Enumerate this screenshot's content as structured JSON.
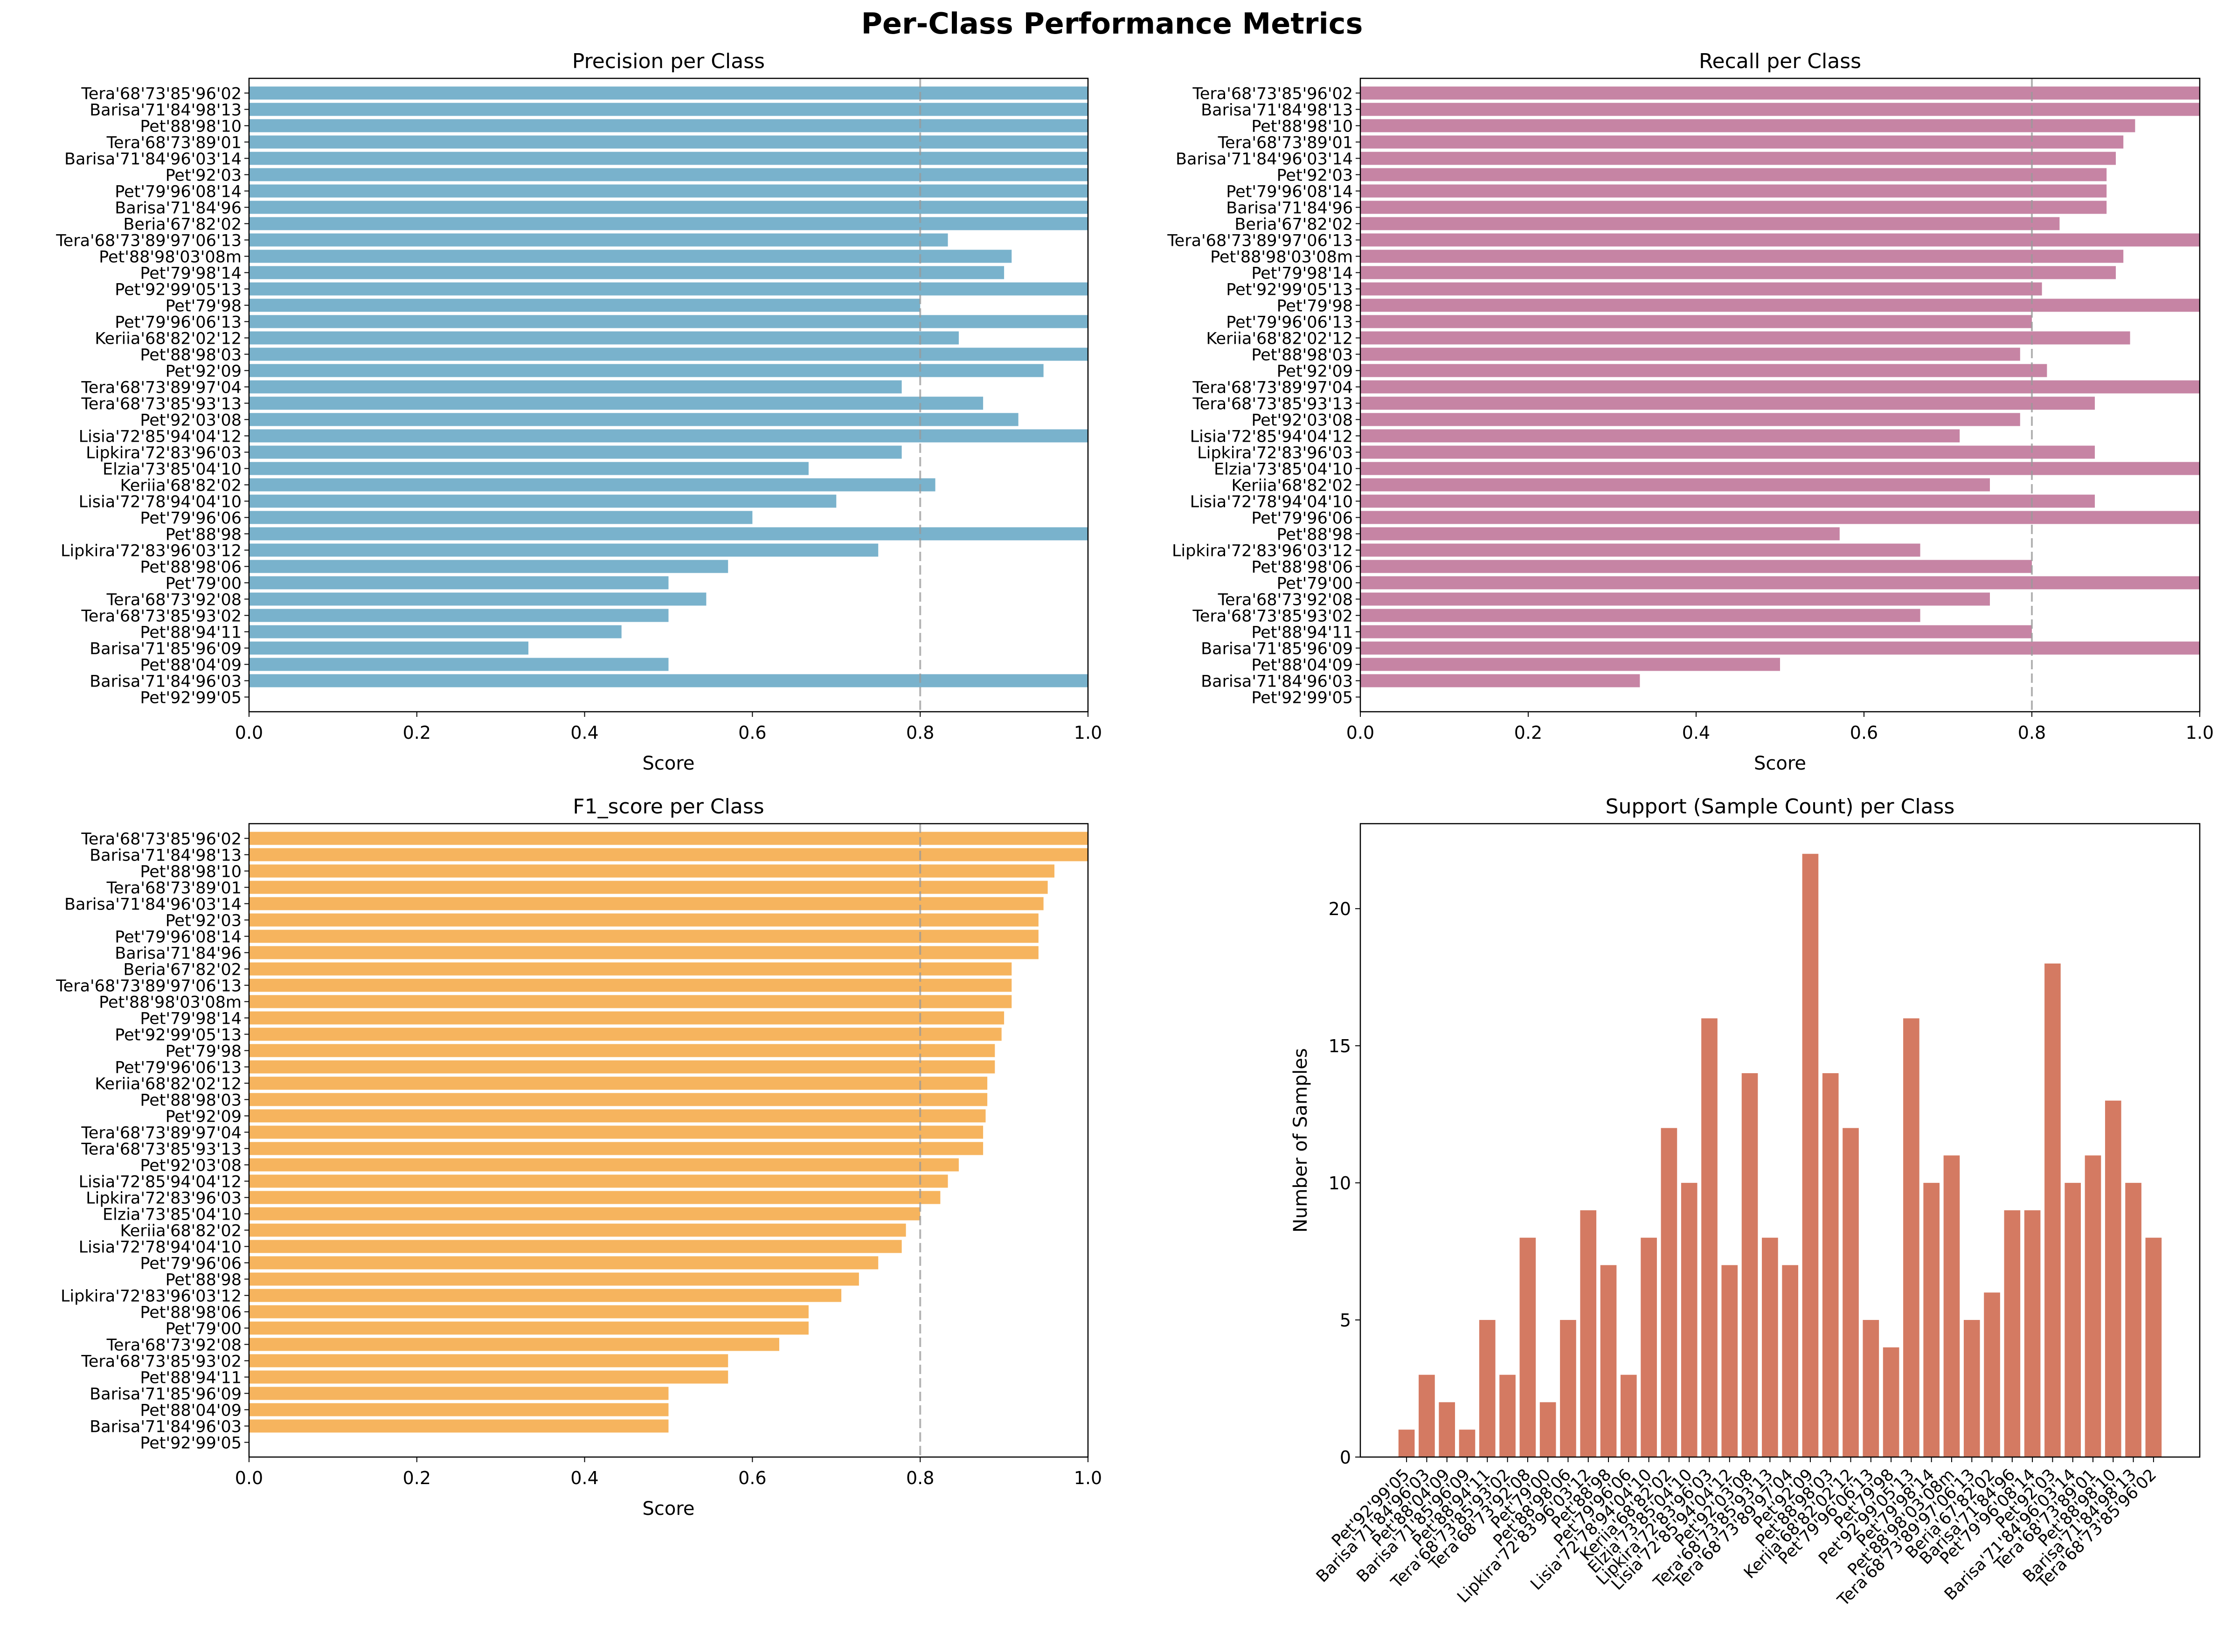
{
  "figure": {
    "title": "Per-Class Performance Metrics"
  },
  "chart_data": [
    {
      "type": "bar",
      "orientation": "horizontal",
      "title": "Precision per Class",
      "xlabel": "Score",
      "ylabel": "",
      "xlim": [
        0,
        1.0
      ],
      "xticks": [
        "0.0",
        "0.2",
        "0.4",
        "0.6",
        "0.8",
        "1.0"
      ],
      "threshold": 0.8,
      "color": "#6aaac6",
      "categories": [
        "Tera'68'73'85'96'02",
        "Barisa'71'84'98'13",
        "Pet'88'98'10",
        "Tera'68'73'89'01",
        "Barisa'71'84'96'03'14",
        "Pet'92'03",
        "Pet'79'96'08'14",
        "Barisa'71'84'96",
        "Beria'67'82'02",
        "Tera'68'73'89'97'06'13",
        "Pet'88'98'03'08m",
        "Pet'79'98'14",
        "Pet'92'99'05'13",
        "Pet'79'98",
        "Pet'79'96'06'13",
        "Keriia'68'82'02'12",
        "Pet'88'98'03",
        "Pet'92'09",
        "Tera'68'73'89'97'04",
        "Tera'68'73'85'93'13",
        "Pet'92'03'08",
        "Lisia'72'85'94'04'12",
        "Lipkira'72'83'96'03",
        "Elzia'73'85'04'10",
        "Keriia'68'82'02",
        "Lisia'72'78'94'04'10",
        "Pet'79'96'06",
        "Pet'88'98",
        "Lipkira'72'83'96'03'12",
        "Pet'88'98'06",
        "Pet'79'00",
        "Tera'68'73'92'08",
        "Tera'68'73'85'93'02",
        "Pet'88'94'11",
        "Barisa'71'85'96'09",
        "Pet'88'04'09",
        "Barisa'71'84'96'03",
        "Pet'92'99'05"
      ],
      "values": [
        1.0,
        1.0,
        1.0,
        1.0,
        1.0,
        1.0,
        1.0,
        1.0,
        1.0,
        0.833,
        0.909,
        0.9,
        1.0,
        0.8,
        1.0,
        0.846,
        1.0,
        0.947,
        0.778,
        0.875,
        0.917,
        1.0,
        0.778,
        0.667,
        0.818,
        0.7,
        0.6,
        1.0,
        0.75,
        0.571,
        0.5,
        0.545,
        0.5,
        0.444,
        0.333,
        0.5,
        1.0,
        0.0
      ]
    },
    {
      "type": "bar",
      "orientation": "horizontal",
      "title": "Recall per Class",
      "xlabel": "Score",
      "ylabel": "",
      "xlim": [
        0,
        1.0
      ],
      "xticks": [
        "0.0",
        "0.2",
        "0.4",
        "0.6",
        "0.8",
        "1.0"
      ],
      "threshold": 0.8,
      "color": "#c0779a",
      "categories": [
        "Tera'68'73'85'96'02",
        "Barisa'71'84'98'13",
        "Pet'88'98'10",
        "Tera'68'73'89'01",
        "Barisa'71'84'96'03'14",
        "Pet'92'03",
        "Pet'79'96'08'14",
        "Barisa'71'84'96",
        "Beria'67'82'02",
        "Tera'68'73'89'97'06'13",
        "Pet'88'98'03'08m",
        "Pet'79'98'14",
        "Pet'92'99'05'13",
        "Pet'79'98",
        "Pet'79'96'06'13",
        "Keriia'68'82'02'12",
        "Pet'88'98'03",
        "Pet'92'09",
        "Tera'68'73'89'97'04",
        "Tera'68'73'85'93'13",
        "Pet'92'03'08",
        "Lisia'72'85'94'04'12",
        "Lipkira'72'83'96'03",
        "Elzia'73'85'04'10",
        "Keriia'68'82'02",
        "Lisia'72'78'94'04'10",
        "Pet'79'96'06",
        "Pet'88'98",
        "Lipkira'72'83'96'03'12",
        "Pet'88'98'06",
        "Pet'79'00",
        "Tera'68'73'92'08",
        "Tera'68'73'85'93'02",
        "Pet'88'94'11",
        "Barisa'71'85'96'09",
        "Pet'88'04'09",
        "Barisa'71'84'96'03",
        "Pet'92'99'05"
      ],
      "values": [
        1.0,
        1.0,
        0.923,
        0.909,
        0.9,
        0.889,
        0.889,
        0.889,
        0.833,
        1.0,
        0.909,
        0.9,
        0.812,
        1.0,
        0.8,
        0.917,
        0.786,
        0.818,
        1.0,
        0.875,
        0.786,
        0.714,
        0.875,
        1.0,
        0.75,
        0.875,
        1.0,
        0.571,
        0.667,
        0.8,
        1.0,
        0.75,
        0.667,
        0.8,
        1.0,
        0.5,
        0.333,
        0.0
      ]
    },
    {
      "type": "bar",
      "orientation": "horizontal",
      "title": "F1_score per Class",
      "xlabel": "Score",
      "ylabel": "",
      "xlim": [
        0,
        1.0
      ],
      "xticks": [
        "0.0",
        "0.2",
        "0.4",
        "0.6",
        "0.8",
        "1.0"
      ],
      "threshold": 0.8,
      "color": "#f5ac4c",
      "categories": [
        "Tera'68'73'85'96'02",
        "Barisa'71'84'98'13",
        "Pet'88'98'10",
        "Tera'68'73'89'01",
        "Barisa'71'84'96'03'14",
        "Pet'92'03",
        "Pet'79'96'08'14",
        "Barisa'71'84'96",
        "Beria'67'82'02",
        "Tera'68'73'89'97'06'13",
        "Pet'88'98'03'08m",
        "Pet'79'98'14",
        "Pet'92'99'05'13",
        "Pet'79'98",
        "Pet'79'96'06'13",
        "Keriia'68'82'02'12",
        "Pet'88'98'03",
        "Pet'92'09",
        "Tera'68'73'89'97'04",
        "Tera'68'73'85'93'13",
        "Pet'92'03'08",
        "Lisia'72'85'94'04'12",
        "Lipkira'72'83'96'03",
        "Elzia'73'85'04'10",
        "Keriia'68'82'02",
        "Lisia'72'78'94'04'10",
        "Pet'79'96'06",
        "Pet'88'98",
        "Lipkira'72'83'96'03'12",
        "Pet'88'98'06",
        "Pet'79'00",
        "Tera'68'73'92'08",
        "Tera'68'73'85'93'02",
        "Pet'88'94'11",
        "Barisa'71'85'96'09",
        "Pet'88'04'09",
        "Barisa'71'84'96'03",
        "Pet'92'99'05"
      ],
      "values": [
        1.0,
        1.0,
        0.96,
        0.952,
        0.947,
        0.941,
        0.941,
        0.941,
        0.909,
        0.909,
        0.909,
        0.9,
        0.897,
        0.889,
        0.889,
        0.88,
        0.88,
        0.878,
        0.875,
        0.875,
        0.846,
        0.833,
        0.824,
        0.8,
        0.783,
        0.778,
        0.75,
        0.727,
        0.706,
        0.667,
        0.667,
        0.632,
        0.571,
        0.571,
        0.5,
        0.5,
        0.5,
        0.0
      ]
    },
    {
      "type": "bar",
      "orientation": "vertical",
      "title": "Support (Sample Count) per Class",
      "xlabel": "",
      "ylabel": "Number of Samples",
      "ylim": [
        0,
        23.1
      ],
      "yticks": [
        0,
        5,
        10,
        15,
        20
      ],
      "color": "#d2735a",
      "categories": [
        "Pet'92'99'05",
        "Barisa'71'84'96'03",
        "Pet'88'04'09",
        "Barisa'71'85'96'09",
        "Pet'88'94'11",
        "Tera'68'73'85'93'02",
        "Tera'68'73'92'08",
        "Pet'79'00",
        "Pet'88'98'06",
        "Lipkira'72'83'96'03'12",
        "Pet'88'98",
        "Pet'79'96'06",
        "Lisia'72'78'94'04'10",
        "Keriia'68'82'02",
        "Elzia'73'85'04'10",
        "Lipkira'72'83'96'03",
        "Lisia'72'85'94'04'12",
        "Pet'92'03'08",
        "Tera'68'73'85'93'13",
        "Tera'68'73'89'97'04",
        "Pet'92'09",
        "Pet'88'98'03",
        "Keriia'68'82'02'12",
        "Pet'79'96'06'13",
        "Pet'79'98",
        "Pet'92'99'05'13",
        "Pet'79'98'14",
        "Pet'88'98'03'08m",
        "Tera'68'73'89'97'06'13",
        "Beria'67'82'02",
        "Barisa'71'84'96",
        "Pet'79'96'08'14",
        "Pet'92'03",
        "Barisa'71'84'96'03'14",
        "Tera'68'73'89'01",
        "Pet'88'98'10",
        "Barisa'71'84'98'13",
        "Tera'68'73'85'96'02"
      ],
      "values": [
        1,
        3,
        2,
        1,
        5,
        3,
        8,
        2,
        5,
        9,
        7,
        3,
        8,
        12,
        10,
        16,
        7,
        14,
        8,
        7,
        22,
        14,
        12,
        5,
        4,
        16,
        10,
        11,
        5,
        6,
        9,
        9,
        18,
        10,
        11,
        13,
        10,
        8
      ]
    }
  ]
}
